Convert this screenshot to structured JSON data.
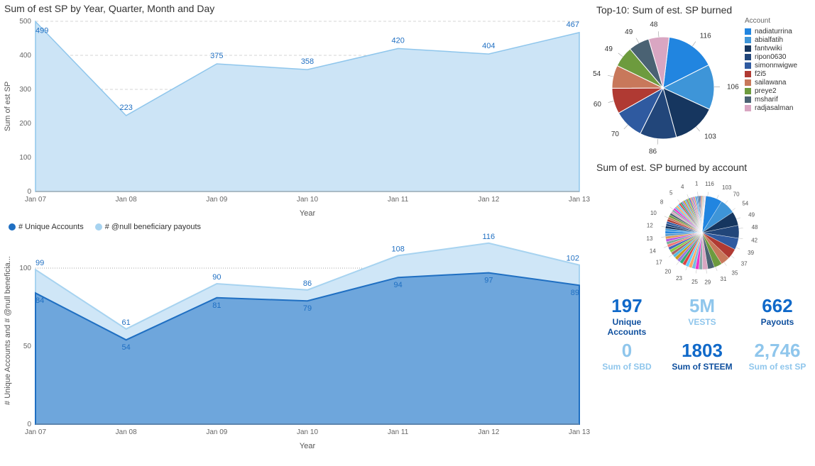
{
  "area_chart": {
    "title": "Sum of est SP by Year, Quarter, Month and Day",
    "ylabel": "Sum of est SP",
    "xlabel": "Year",
    "categories": [
      "Jan 07",
      "Jan 08",
      "Jan 09",
      "Jan 10",
      "Jan 11",
      "Jan 12",
      "Jan 13"
    ],
    "values": [
      499,
      223,
      375,
      358,
      420,
      404,
      467
    ],
    "ylim": [
      0,
      500
    ],
    "ytick_step": 100,
    "fill_color": "#cce4f6",
    "line_color": "#8fc6ec",
    "label_color": "#1069c9",
    "background": "#ffffff"
  },
  "combo_chart": {
    "legend": [
      {
        "label": "# Unique Accounts",
        "color": "#1f6fc2",
        "style": "dark"
      },
      {
        "label": "# @null beneficiary payouts",
        "color": "#a7d3f0",
        "style": "light"
      }
    ],
    "ylabel": "# Unique Accounts and # @null beneficia...",
    "xlabel": "Year",
    "categories": [
      "Jan 07",
      "Jan 08",
      "Jan 09",
      "Jan 10",
      "Jan 11",
      "Jan 12",
      "Jan 13"
    ],
    "series_unique": [
      84,
      54,
      81,
      79,
      94,
      97,
      89
    ],
    "series_payouts": [
      99,
      61,
      90,
      86,
      108,
      116,
      102
    ],
    "ylim": [
      0,
      120
    ],
    "yticks": [
      0,
      50,
      100
    ],
    "light_fill": "#cfe6f7",
    "light_line": "#a7d3f0",
    "dark_fill": "#6ea6dc",
    "dark_line": "#1f6fc2",
    "label_color": "#1069c9"
  },
  "top10_pie": {
    "title": "Top-10: Sum of est. SP burned",
    "legend_header": "Account",
    "items": [
      {
        "label": "nadiaturrina",
        "value": 116,
        "color": "#2185e0"
      },
      {
        "label": "abialfatih",
        "value": 106,
        "color": "#3e95d8"
      },
      {
        "label": "fantvwiki",
        "value": 103,
        "color": "#16365f"
      },
      {
        "label": "ripon0630",
        "value": 86,
        "color": "#22467a"
      },
      {
        "label": "simonnwigwe",
        "value": 70,
        "color": "#2f5aa0"
      },
      {
        "label": "f2i5",
        "value": 60,
        "color": "#b03a33"
      },
      {
        "label": "sailawana",
        "value": 54,
        "color": "#c8785b"
      },
      {
        "label": "preye2",
        "value": 49,
        "color": "#6d9b3e"
      },
      {
        "label": "msharif",
        "value": 49,
        "color": "#4a6273"
      },
      {
        "label": "radjasalman",
        "value": 48,
        "color": "#d9a6c2"
      }
    ]
  },
  "all_pie": {
    "title": "Sum of est. SP burned by account",
    "outer_labels": [
      116,
      103,
      70,
      54,
      49,
      48,
      42,
      39,
      37,
      35,
      31,
      29,
      25,
      23,
      20,
      17,
      14,
      13,
      12,
      10,
      8,
      5,
      4,
      1
    ]
  },
  "kpis": [
    {
      "value": "197",
      "label": "Unique Accounts",
      "val_cls": "c-blue",
      "lbl_cls": "c-dark"
    },
    {
      "value": "5M",
      "label": "VESTS",
      "val_cls": "c-light",
      "lbl_cls": "c-light"
    },
    {
      "value": "662",
      "label": "Payouts",
      "val_cls": "c-blue",
      "lbl_cls": "c-dark"
    },
    {
      "value": "0",
      "label": "Sum of SBD",
      "val_cls": "c-light",
      "lbl_cls": "c-light"
    },
    {
      "value": "1803",
      "label": "Sum of STEEM",
      "val_cls": "c-blue",
      "lbl_cls": "c-dark"
    },
    {
      "value": "2,746",
      "label": "Sum of est SP",
      "val_cls": "c-light",
      "lbl_cls": "c-light"
    }
  ]
}
